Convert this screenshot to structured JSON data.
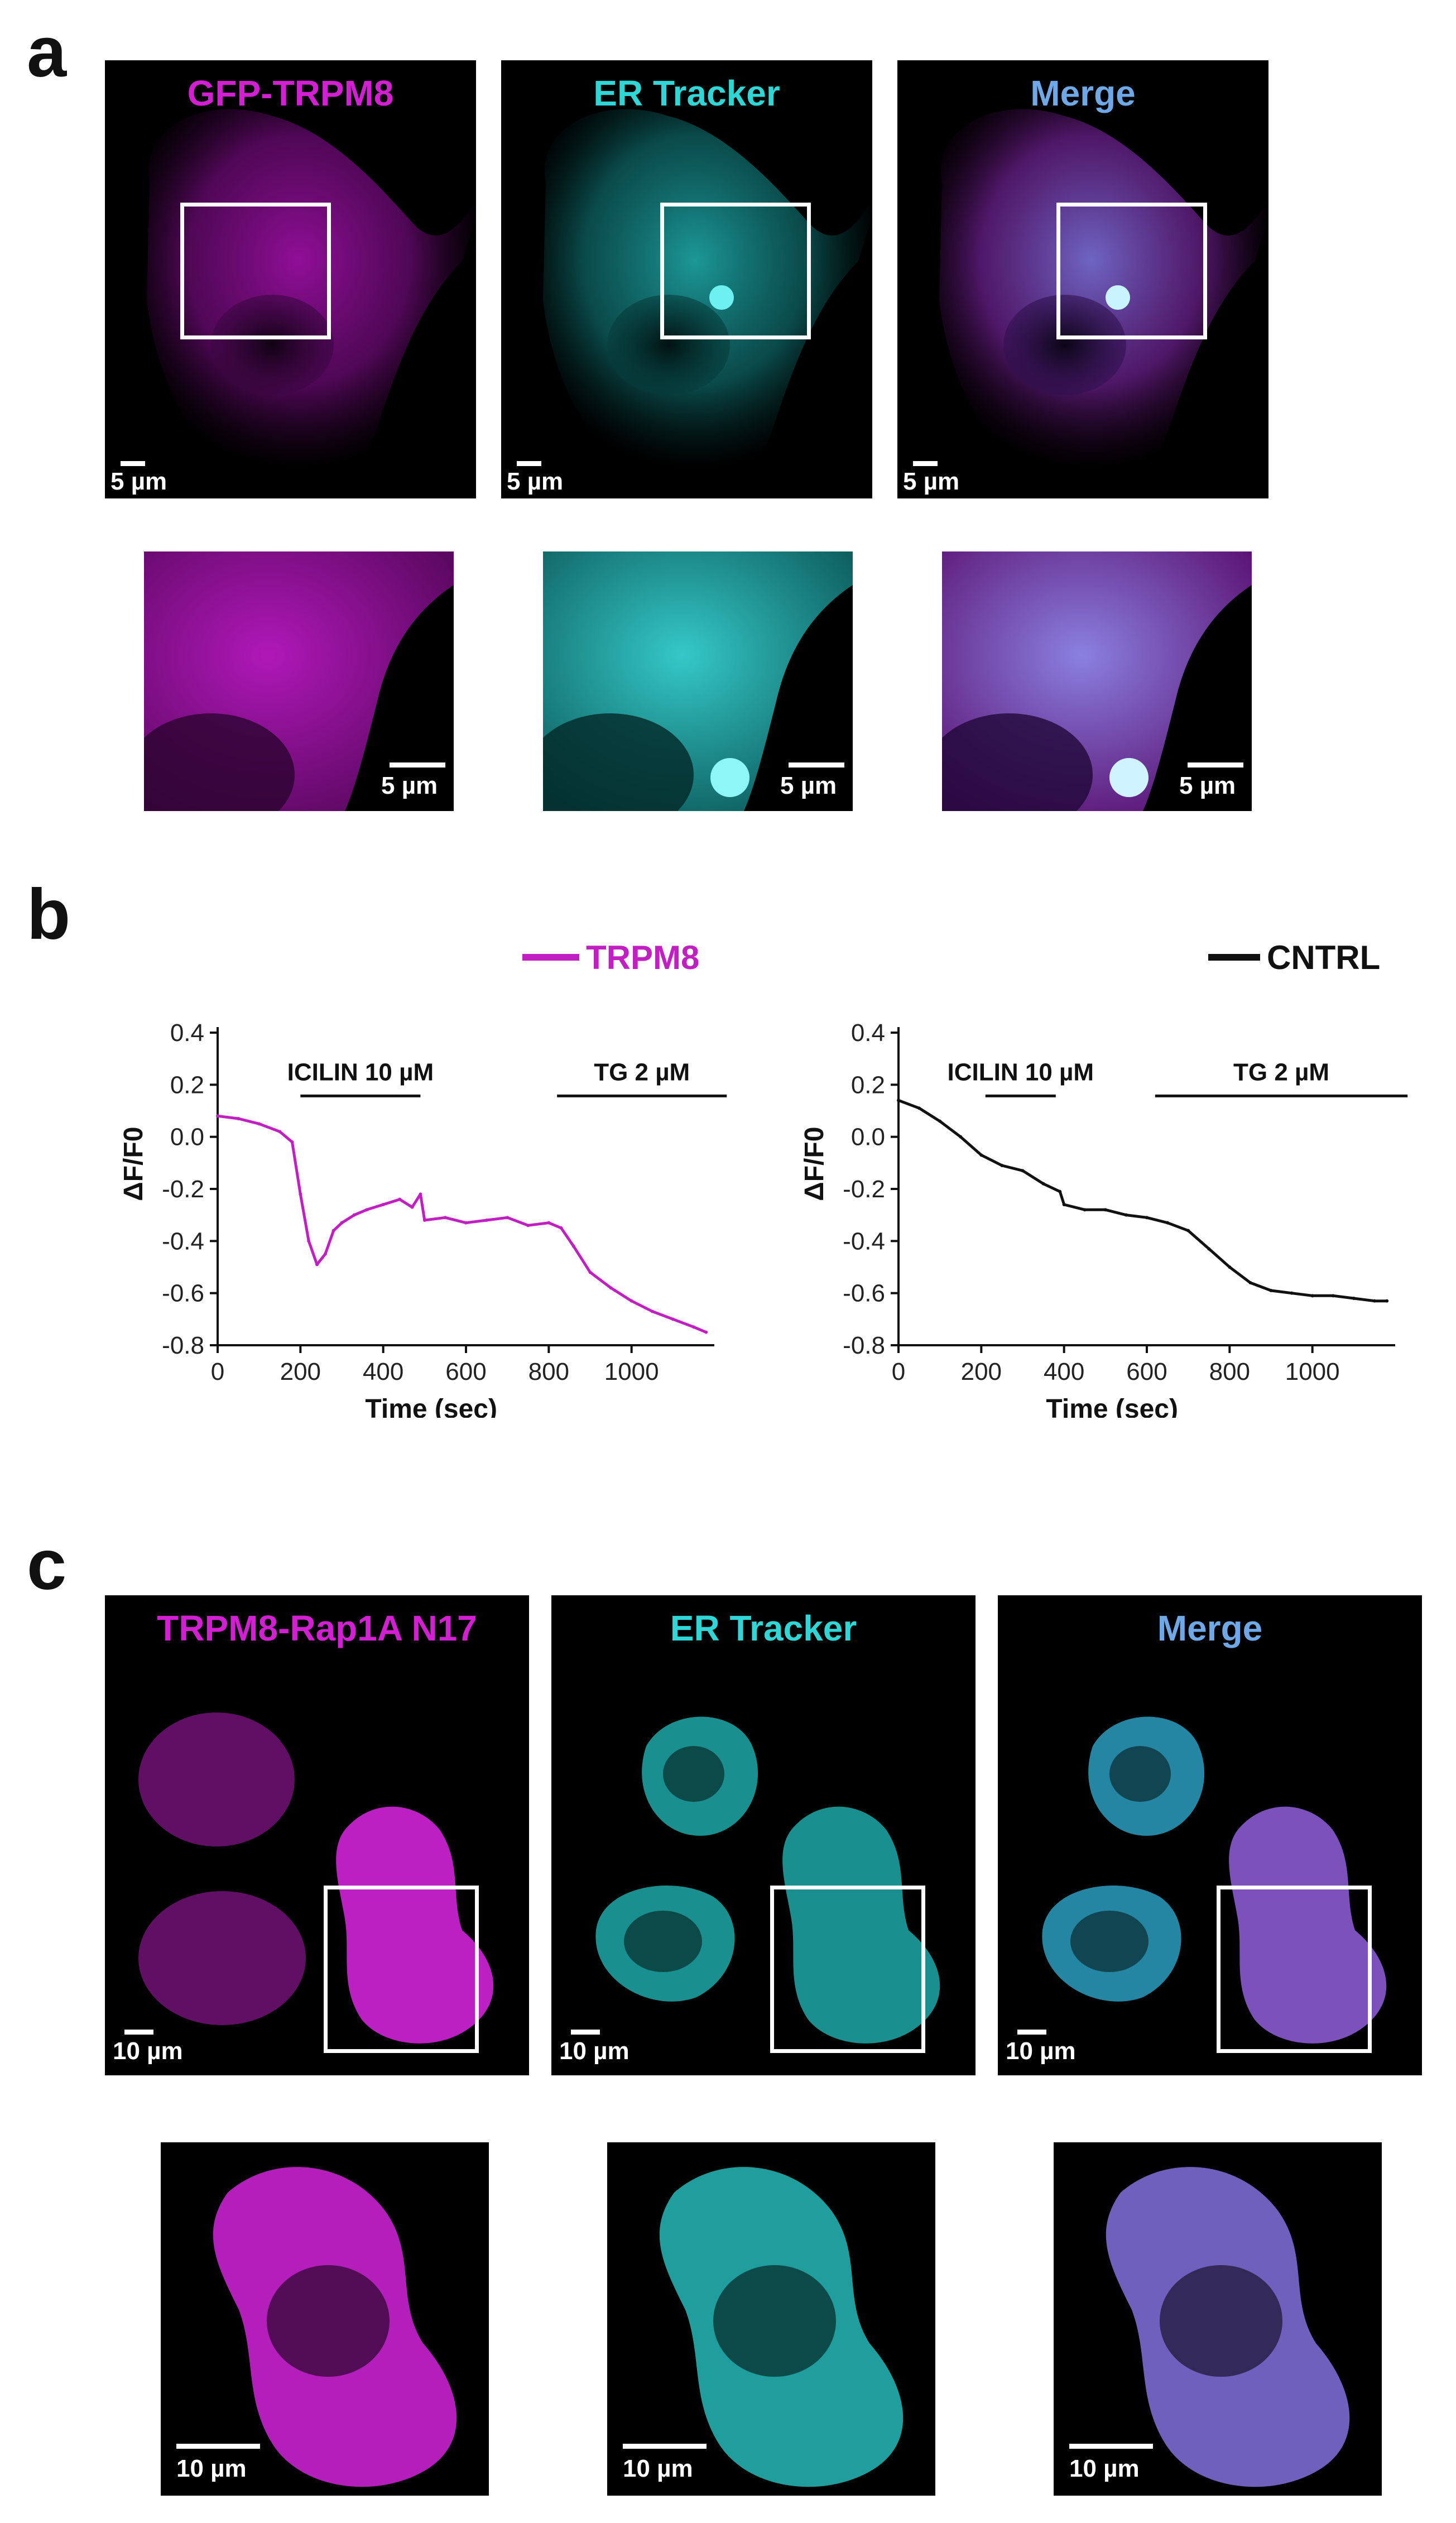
{
  "figure": {
    "panel_a": {
      "letter": "a",
      "channels": [
        {
          "label": "GFP-TRPM8",
          "color": "#d21fd2",
          "scale": "5 µm"
        },
        {
          "label": "ER Tracker",
          "color": "#2fd6d6",
          "scale": "5 µm"
        },
        {
          "label": "Merge",
          "color": "#6fa8e6",
          "scale": "5 µm"
        }
      ],
      "zoom_scales": [
        "5 µm",
        "5 µm",
        "5 µm"
      ]
    },
    "panel_b": {
      "letter": "b",
      "legend_trpm8": "TRPM8",
      "legend_cntrl": "CNTRL"
    },
    "panel_c": {
      "letter": "c",
      "channels": [
        {
          "label": "TRPM8-Rap1A N17",
          "color": "#d21fd2",
          "scale": "10 µm"
        },
        {
          "label": "ER Tracker",
          "color": "#2fd6d6",
          "scale": "10 µm"
        },
        {
          "label": "Merge",
          "color": "#6fa8e6",
          "scale": "10 µm"
        }
      ],
      "zoom_scales": [
        "10 µm",
        "10 µm",
        "10 µm"
      ]
    }
  },
  "chart_data": [
    {
      "type": "line",
      "series_name": "TRPM8",
      "color": "#c21fc2",
      "xlabel": "Time (sec)",
      "ylabel": "ΔF/F0",
      "xlim": [
        0,
        1200
      ],
      "ylim": [
        -0.8,
        0.4
      ],
      "xticks": [
        0,
        200,
        400,
        600,
        800,
        1000
      ],
      "yticks": [
        0.4,
        0.2,
        0.0,
        -0.2,
        -0.4,
        -0.6,
        -0.8
      ],
      "annotations": [
        {
          "text": "ICILIN 10 µM",
          "x_start": 200,
          "x_end": 490
        },
        {
          "text": "TG 2 µM",
          "x_start": 820,
          "x_end": 1230
        }
      ],
      "x": [
        0,
        50,
        100,
        150,
        180,
        200,
        220,
        240,
        260,
        280,
        300,
        330,
        360,
        400,
        440,
        470,
        490,
        500,
        550,
        600,
        650,
        700,
        750,
        800,
        830,
        860,
        900,
        950,
        1000,
        1050,
        1100,
        1150,
        1180
      ],
      "y": [
        0.08,
        0.07,
        0.05,
        0.02,
        -0.02,
        -0.22,
        -0.4,
        -0.49,
        -0.45,
        -0.36,
        -0.33,
        -0.3,
        -0.28,
        -0.26,
        -0.24,
        -0.27,
        -0.22,
        -0.32,
        -0.31,
        -0.33,
        -0.32,
        -0.31,
        -0.34,
        -0.33,
        -0.35,
        -0.42,
        -0.52,
        -0.58,
        -0.63,
        -0.67,
        -0.7,
        -0.73,
        -0.75
      ]
    },
    {
      "type": "line",
      "series_name": "CNTRL",
      "color": "#111111",
      "xlabel": "Time (sec)",
      "ylabel": "ΔF/F0",
      "xlim": [
        0,
        1200
      ],
      "ylim": [
        -0.8,
        0.4
      ],
      "xticks": [
        0,
        200,
        400,
        600,
        800,
        1000
      ],
      "yticks": [
        0.4,
        0.2,
        0.0,
        -0.2,
        -0.4,
        -0.6,
        -0.8
      ],
      "annotations": [
        {
          "text": "ICILIN 10 µM",
          "x_start": 210,
          "x_end": 380
        },
        {
          "text": "TG 2 µM",
          "x_start": 620,
          "x_end": 1230
        }
      ],
      "x": [
        0,
        50,
        100,
        150,
        200,
        250,
        300,
        350,
        390,
        400,
        450,
        500,
        550,
        600,
        650,
        700,
        750,
        800,
        850,
        900,
        950,
        1000,
        1050,
        1100,
        1150,
        1180
      ],
      "y": [
        0.14,
        0.11,
        0.06,
        0.0,
        -0.07,
        -0.11,
        -0.13,
        -0.18,
        -0.21,
        -0.26,
        -0.28,
        -0.28,
        -0.3,
        -0.31,
        -0.33,
        -0.36,
        -0.43,
        -0.5,
        -0.56,
        -0.59,
        -0.6,
        -0.61,
        -0.61,
        -0.62,
        -0.63,
        -0.63
      ]
    }
  ]
}
